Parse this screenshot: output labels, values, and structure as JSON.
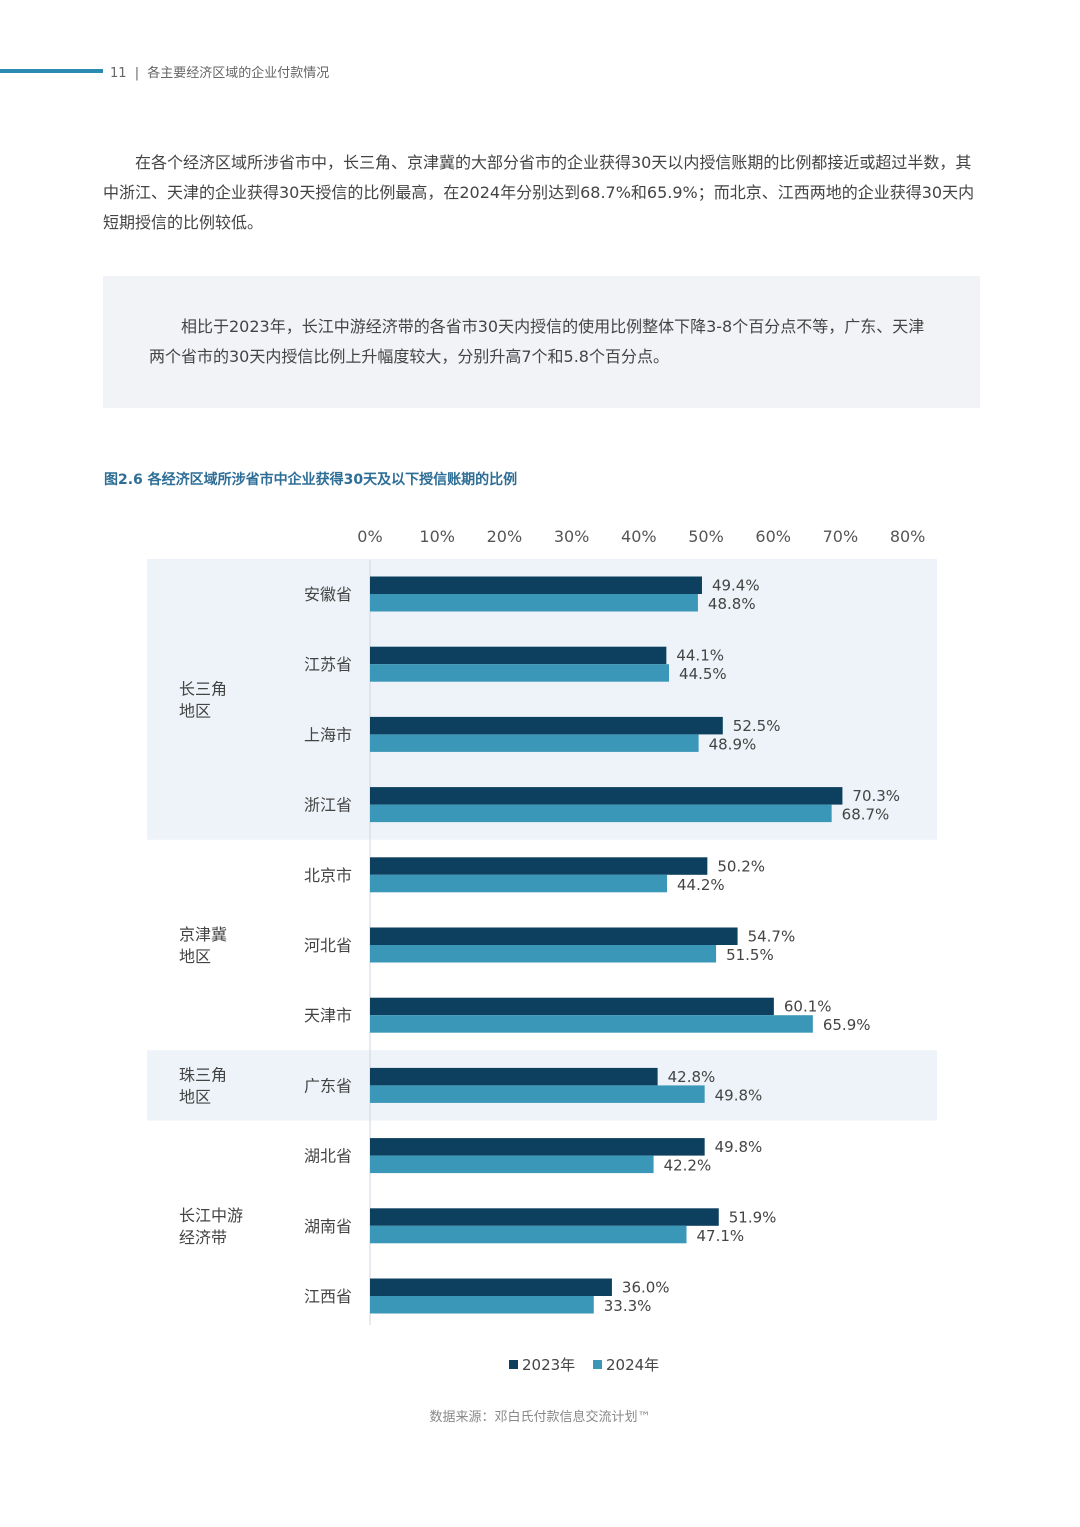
{
  "header": {
    "page_number": "11",
    "separator": "|",
    "section_title": "各主要经济区域的企业付款情况"
  },
  "intro_text": "在各个经济区域所涉省市中，长三角、京津冀的大部分省市的企业获得30天以内授信账期的比例都接近或超过半数，其中浙江、天津的企业获得30天授信的比例最高，在2024年分别达到68.7%和65.9%；而北京、江西两地的企业获得30天内短期授信的比例较低。",
  "highlight_text": "相比于2023年，长江中游经济带的各省市30天内授信的使用比例整体下降3-8个百分点不等，广东、天津两个省市的30天内授信比例上升幅度较大，分别升高7个和5.8个百分点。",
  "figure_title": "图2.6 各经济区域所涉省市中企业获得30天及以下授信账期的比例",
  "source_text": "数据来源：邓白氏付款信息交流计划™",
  "colors": {
    "series_2023": "#0d3f5f",
    "series_2024": "#3b97b8",
    "band": "#edf3f8",
    "accent": "#2a8ab0"
  },
  "chart_data": {
    "type": "bar",
    "orientation": "horizontal",
    "title": "图2.6 各经济区域所涉省市中企业获得30天及以下授信账期的比例",
    "xlim": [
      0,
      80
    ],
    "x_ticks": [
      "0%",
      "10%",
      "20%",
      "30%",
      "40%",
      "50%",
      "60%",
      "70%",
      "80%"
    ],
    "tick_values": [
      0,
      10,
      20,
      30,
      40,
      50,
      60,
      70,
      80
    ],
    "unit": "%",
    "legend_position": "bottom",
    "categories": [
      "安徽省",
      "江苏省",
      "上海市",
      "浙江省",
      "北京市",
      "河北省",
      "天津市",
      "广东省",
      "湖北省",
      "湖南省",
      "江西省"
    ],
    "groups": [
      {
        "label_lines": [
          "长三角",
          "地区"
        ],
        "categories": [
          "安徽省",
          "江苏省",
          "上海市",
          "浙江省"
        ],
        "shaded": true
      },
      {
        "label_lines": [
          "京津冀",
          "地区"
        ],
        "categories": [
          "北京市",
          "河北省",
          "天津市"
        ],
        "shaded": false
      },
      {
        "label_lines": [
          "珠三角",
          "地区"
        ],
        "categories": [
          "广东省"
        ],
        "shaded": true
      },
      {
        "label_lines": [
          "长江中游",
          "经济带"
        ],
        "categories": [
          "湖北省",
          "湖南省",
          "江西省"
        ],
        "shaded": false
      }
    ],
    "series": [
      {
        "name": "2023年",
        "values": [
          49.4,
          44.1,
          52.5,
          70.3,
          50.2,
          54.7,
          60.1,
          42.8,
          49.8,
          51.9,
          36.0
        ],
        "labels": [
          "49.4%",
          "44.1%",
          "52.5%",
          "70.3%",
          "50.2%",
          "54.7%",
          "60.1%",
          "42.8%",
          "49.8%",
          "51.9%",
          "36.0%"
        ]
      },
      {
        "name": "2024年",
        "values": [
          48.8,
          44.5,
          48.9,
          68.7,
          44.2,
          51.5,
          65.9,
          49.8,
          42.2,
          47.1,
          33.3
        ],
        "labels": [
          "48.8%",
          "44.5%",
          "48.9%",
          "68.7%",
          "44.2%",
          "51.5%",
          "65.9%",
          "49.8%",
          "42.2%",
          "47.1%",
          "33.3%"
        ]
      }
    ]
  }
}
